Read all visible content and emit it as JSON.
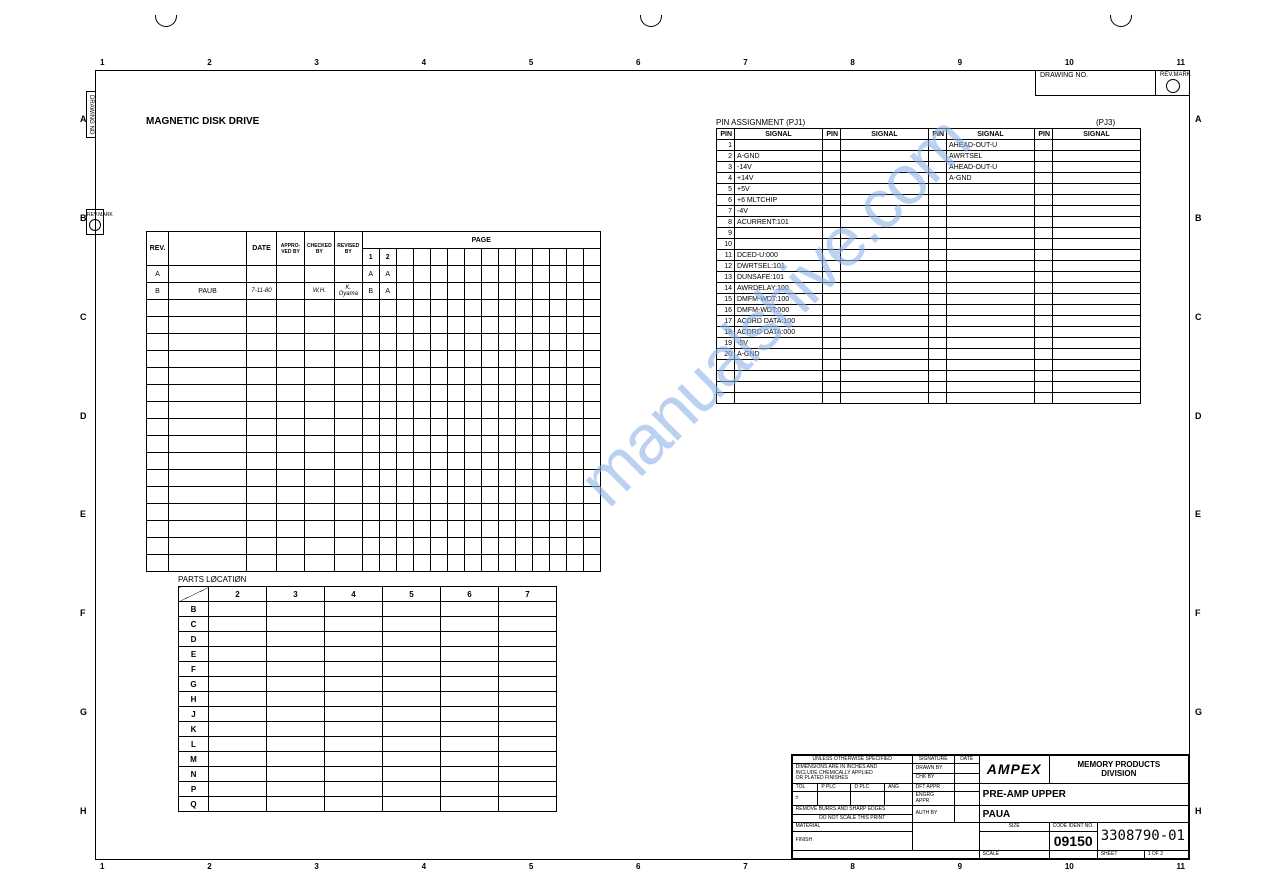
{
  "header": {
    "title": "MAGNETIC DISK DRIVE",
    "drawing_no_label": "DRAWING NO.",
    "revmark_label": "REV.MARK"
  },
  "ruler": {
    "top": [
      "1",
      "2",
      "3",
      "4",
      "5",
      "6",
      "7",
      "8",
      "9",
      "10",
      "11"
    ],
    "side": [
      "A",
      "B",
      "C",
      "D",
      "E",
      "F",
      "G",
      "H"
    ]
  },
  "rev_table": {
    "headers": {
      "rev": "REV.",
      "date": "DATE",
      "appro": "APPRO-\nVED BY",
      "checked": "CHECKED\nBY",
      "revised": "REVISED\nBY",
      "page": "PAGE",
      "p1": "1",
      "p2": "2"
    },
    "rows": [
      {
        "rev": "A",
        "desc": "",
        "date": "",
        "appro": "",
        "checked": "",
        "revised": "",
        "p1": "A",
        "p2": "A"
      },
      {
        "rev": "B",
        "desc": "PAUB",
        "date": "7-11-80",
        "appro": "",
        "checked": "W.H.",
        "revised": "K. Oyama",
        "p1": "B",
        "p2": "A"
      }
    ],
    "blank_rows": 16,
    "page_cols": 12
  },
  "parts": {
    "title": "PARTS  LØCATIØN",
    "cols": [
      "2",
      "3",
      "4",
      "5",
      "6",
      "7"
    ],
    "rows": [
      "B",
      "C",
      "D",
      "E",
      "F",
      "G",
      "H",
      "J",
      "K",
      "L",
      "M",
      "N",
      "P",
      "Q"
    ]
  },
  "pins": {
    "title1": "PIN   ASSIGNMENT (PJ1)",
    "title2": "(PJ3)",
    "headers": {
      "pin": "PIN",
      "signal": "SIGNAL"
    },
    "col1": [
      {
        "pin": "1",
        "sig": ""
      },
      {
        "pin": "2",
        "sig": "A-GND"
      },
      {
        "pin": "3",
        "sig": "-14V"
      },
      {
        "pin": "4",
        "sig": "+14V"
      },
      {
        "pin": "5",
        "sig": "+5V"
      },
      {
        "pin": "6",
        "sig": "+6 MLTCHIP"
      },
      {
        "pin": "7",
        "sig": "-4V"
      },
      {
        "pin": "8",
        "sig": "ACURRENT:101"
      },
      {
        "pin": "9",
        "sig": ""
      },
      {
        "pin": "10",
        "sig": ""
      },
      {
        "pin": "11",
        "sig": "DCED-U:000"
      },
      {
        "pin": "12",
        "sig": "DWRTSEL:101"
      },
      {
        "pin": "13",
        "sig": "DUNSAFE:101"
      },
      {
        "pin": "14",
        "sig": "AWRDELAY:100"
      },
      {
        "pin": "15",
        "sig": "DMFM-WDT:100"
      },
      {
        "pin": "16",
        "sig": "DMFM-WDT:000"
      },
      {
        "pin": "17",
        "sig": "ACDRD DATA:100"
      },
      {
        "pin": "18",
        "sig": "ACDRD DATA:000"
      },
      {
        "pin": "19",
        "sig": "-5V"
      },
      {
        "pin": "20",
        "sig": "A-GND"
      },
      {
        "pin": "",
        "sig": ""
      },
      {
        "pin": "",
        "sig": ""
      },
      {
        "pin": "",
        "sig": ""
      },
      {
        "pin": "",
        "sig": ""
      }
    ],
    "col3": [
      {
        "pin": "",
        "sig": "AHEAD-OUT-U"
      },
      {
        "pin": "",
        "sig": "AWRTSEL"
      },
      {
        "pin": "",
        "sig": "AHEAD-OUT-U"
      },
      {
        "pin": "",
        "sig": "A-GND"
      }
    ]
  },
  "titleblock": {
    "spec": "UNLESS OTHERWISE SPECIFIED",
    "dim": "DIMENSIONS ARE IN INCHES AND\nINCLUDE CHEMICALLY APPLIED\nOR PLATED FINISHES",
    "tol": "TOL",
    "pplc": "P PLC",
    "dplc": "D PLC",
    "ang": "ANG",
    "pm": "±",
    "burrs": "REMOVE BURRS AND SHARP EDGES",
    "scale_lbl": "DO NOT SCALE THIS PRINT",
    "material": "MATERIAL",
    "finish": "FINISH",
    "sig": "SIGNATURE",
    "date": "DATE",
    "drawn": "DRAWN BY",
    "chk": "CHK BY",
    "dft": "DFT APPR",
    "engrg": "ENGRG\nAPPR",
    "auth": "AUTH BY",
    "brand": "AMPEX",
    "division": "MEMORY PRODUCTS\nDIVISION",
    "title": "PRE-AMP  UPPER",
    "subtitle": "PAUA",
    "size": "SIZE",
    "code_lbl": "CODE IDENT NO.",
    "code": "09150",
    "number": "3308790-01",
    "scale": "SCALE",
    "sheet": "SHEET",
    "sheet_val": "1 OF 2"
  },
  "watermark": "manualshive.com",
  "colors": {
    "border": "#000000",
    "watermark": "#8db4e8",
    "bg": "#ffffff"
  }
}
